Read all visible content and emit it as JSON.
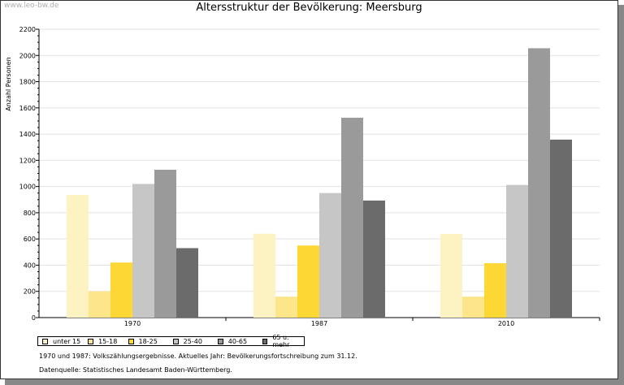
{
  "watermark": "www.leo-bw.de",
  "chart_data": {
    "type": "bar",
    "title": "Altersstruktur der Bevölkerung: Meersburg",
    "xlabel": "",
    "ylabel": "Anzahl Personen",
    "ylim": [
      0,
      2200
    ],
    "yticks": [
      0,
      200,
      400,
      600,
      800,
      1000,
      1200,
      1400,
      1600,
      1800,
      2000,
      2200
    ],
    "categories": [
      "1970",
      "1987",
      "2010"
    ],
    "grid": true,
    "legend_position": "bottom-left",
    "series": [
      {
        "name": "unter 15",
        "color": "#fdf2c2",
        "values": [
          935,
          640,
          638
        ]
      },
      {
        "name": "15-18",
        "color": "#fde58a",
        "values": [
          200,
          160,
          160
        ]
      },
      {
        "name": "18-25",
        "color": "#fdd835",
        "values": [
          420,
          550,
          415
        ]
      },
      {
        "name": "25-40",
        "color": "#c6c6c6",
        "values": [
          1020,
          950,
          1012
        ]
      },
      {
        "name": "40-65",
        "color": "#9a9a9a",
        "values": [
          1128,
          1525,
          2055
        ]
      },
      {
        "name": "65 u. mehr",
        "color": "#6b6b6b",
        "values": [
          530,
          893,
          1358
        ]
      }
    ]
  },
  "notes": {
    "line1": "1970 und 1987: Volkszählungsergebnisse. Aktuelles Jahr: Bevölkerungsfortschreibung zum 31.12.",
    "line2": "Datenquelle: Statistisches Landesamt Baden-Württemberg."
  }
}
